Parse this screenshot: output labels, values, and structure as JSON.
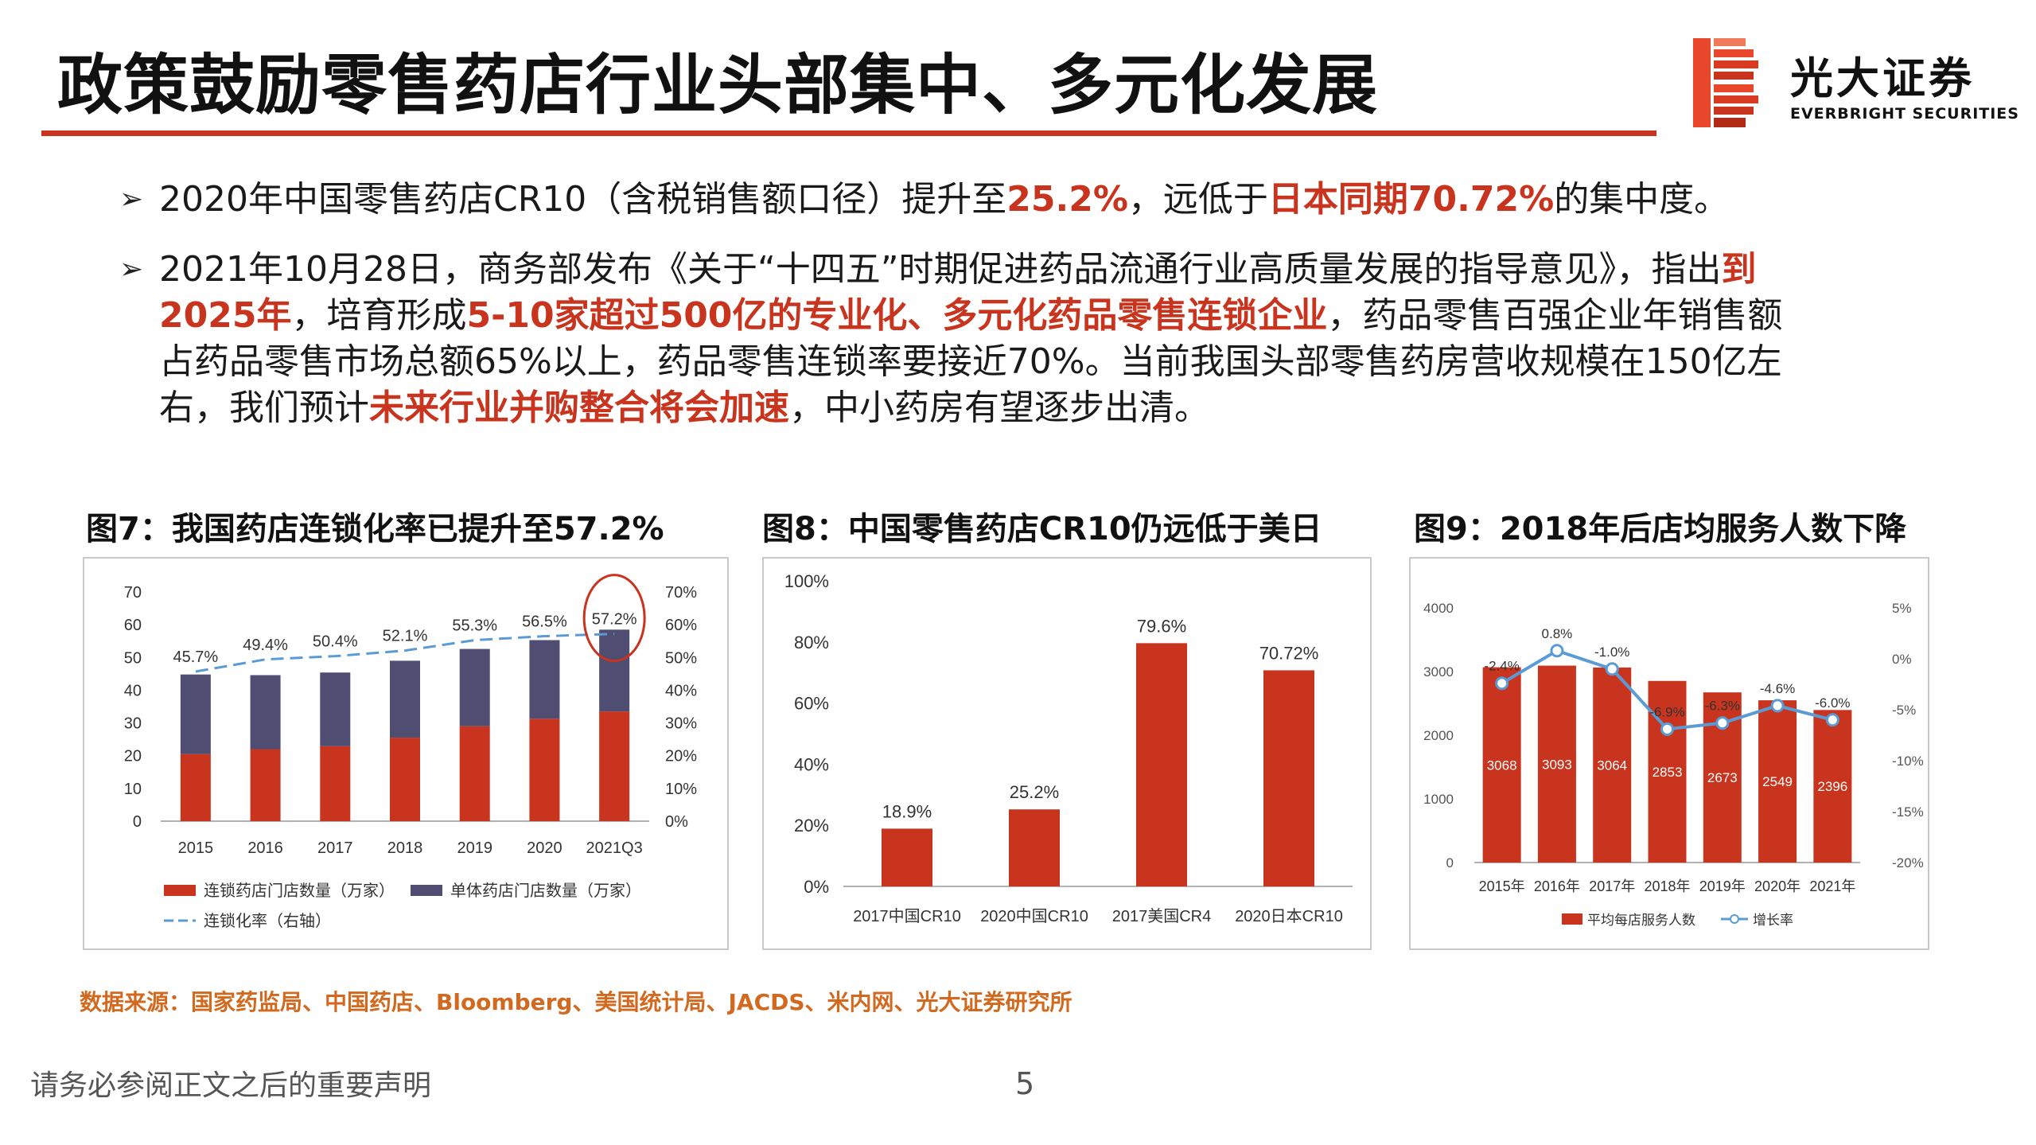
{
  "header": {
    "title": "政策鼓励零售药店行业头部集中、多元化发展",
    "logo_cn": "光大证券",
    "logo_en": "EVERBRIGHT SECURITIES"
  },
  "bullets": [
    {
      "segments": [
        {
          "text": "2020年中国零售药店CR10（含税销售额口径）提升至",
          "hl": false
        },
        {
          "text": "25.2%",
          "hl": true
        },
        {
          "text": "，远低于",
          "hl": false
        },
        {
          "text": "日本同期70.72%",
          "hl": true
        },
        {
          "text": "的集中度。",
          "hl": false
        }
      ]
    },
    {
      "segments": [
        {
          "text": "2021年10月28日，商务部发布《关于“十四五”时期促进药品流通行业高质量发展的指导意见》，指出",
          "hl": false
        },
        {
          "text": "到2025年",
          "hl": true
        },
        {
          "text": "，培育形成",
          "hl": false
        },
        {
          "text": "5-10家超过500亿的专业化、多元化药品零售连锁企业",
          "hl": true
        },
        {
          "text": "，药品零售百强企业年销售额占药品零售市场总额65%以上，药品零售连锁率要接近70%。当前我国头部零售药房营收规模在150亿左右，我们预计",
          "hl": false
        },
        {
          "text": "未来行业并购整合将会加速",
          "hl": true
        },
        {
          "text": "，中小药房有望逐步出清。",
          "hl": false
        }
      ]
    }
  ],
  "colors": {
    "accent": "#c8341e",
    "navy": "#4f4d72",
    "line_blue": "#5b9bd5",
    "source_orange": "#d2691e"
  },
  "chart_data": [
    {
      "type": "bar",
      "title": "图7：我国药店连锁化率已提升至57.2%",
      "stacked": true,
      "categories": [
        "2015",
        "2016",
        "2017",
        "2018",
        "2019",
        "2020",
        "2021Q3"
      ],
      "series": [
        {
          "name": "连锁药店门店数量（万家）",
          "values": [
            20.5,
            22.0,
            22.9,
            25.5,
            29.0,
            31.3,
            33.5
          ],
          "color": "#c8341e"
        },
        {
          "name": "单体药店门店数量（万家）",
          "values": [
            24.3,
            22.6,
            22.5,
            23.5,
            23.6,
            24.0,
            25.0
          ],
          "color": "#4f4d72"
        }
      ],
      "line": {
        "name": "连锁化率（右轴）",
        "values": [
          45.7,
          49.4,
          50.4,
          52.1,
          55.3,
          56.5,
          57.2
        ],
        "labels": [
          "45.7%",
          "49.4%",
          "50.4%",
          "52.1%",
          "55.3%",
          "56.5%",
          "57.2%"
        ]
      },
      "ylim": [
        0,
        70
      ],
      "y_ticks": [
        "0",
        "10",
        "20",
        "30",
        "40",
        "50",
        "60",
        "70"
      ],
      "y2lim": [
        0,
        70
      ],
      "y2_ticks": [
        "0%",
        "10%",
        "20%",
        "30%",
        "40%",
        "50%",
        "60%",
        "70%"
      ],
      "legend": "bottom"
    },
    {
      "type": "bar",
      "title": "图8：中国零售药店CR10仍远低于美日",
      "categories": [
        "2017中国CR10",
        "2020中国CR10",
        "2017美国CR4",
        "2020日本CR10"
      ],
      "values": [
        18.9,
        25.2,
        79.6,
        70.72
      ],
      "labels": [
        "18.9%",
        "25.2%",
        "79.6%",
        "70.72%"
      ],
      "ylim": [
        0,
        100
      ],
      "y_ticks": [
        "0%",
        "20%",
        "40%",
        "60%",
        "80%",
        "100%"
      ]
    },
    {
      "type": "bar",
      "title": "图9：2018年后店均服务人数下降",
      "categories": [
        "2015年",
        "2016年",
        "2017年",
        "2018年",
        "2019年",
        "2020年",
        "2021年"
      ],
      "values": [
        3068,
        3093,
        3064,
        2853,
        2673,
        2549,
        2396
      ],
      "labels": [
        "3068",
        "3093",
        "3064",
        "2853",
        "2673",
        "2549",
        "2396"
      ],
      "bar_name": "平均每店服务人数",
      "line": {
        "name": "增长率",
        "values": [
          -2.4,
          0.8,
          -1.0,
          -6.9,
          -6.3,
          -4.6,
          -6.0
        ],
        "labels": [
          "-2.4%",
          "0.8%",
          "-1.0%",
          "-6.9%",
          "-6.3%",
          "-4.6%",
          "-6.0%"
        ]
      },
      "ylim": [
        0,
        4000
      ],
      "y_ticks": [
        "0",
        "1000",
        "2000",
        "3000",
        "4000"
      ],
      "y2lim": [
        -20,
        5
      ],
      "y2_ticks": [
        "-20%",
        "-15%",
        "-10%",
        "-5%",
        "0%",
        "5%"
      ],
      "legend": "bottom"
    }
  ],
  "footer": {
    "source": "数据来源：国家药监局、中国药店、Bloomberg、美国统计局、JACDS、米内网、光大证券研究所",
    "disclaimer": "请务必参阅正文之后的重要声明",
    "page": "5"
  }
}
